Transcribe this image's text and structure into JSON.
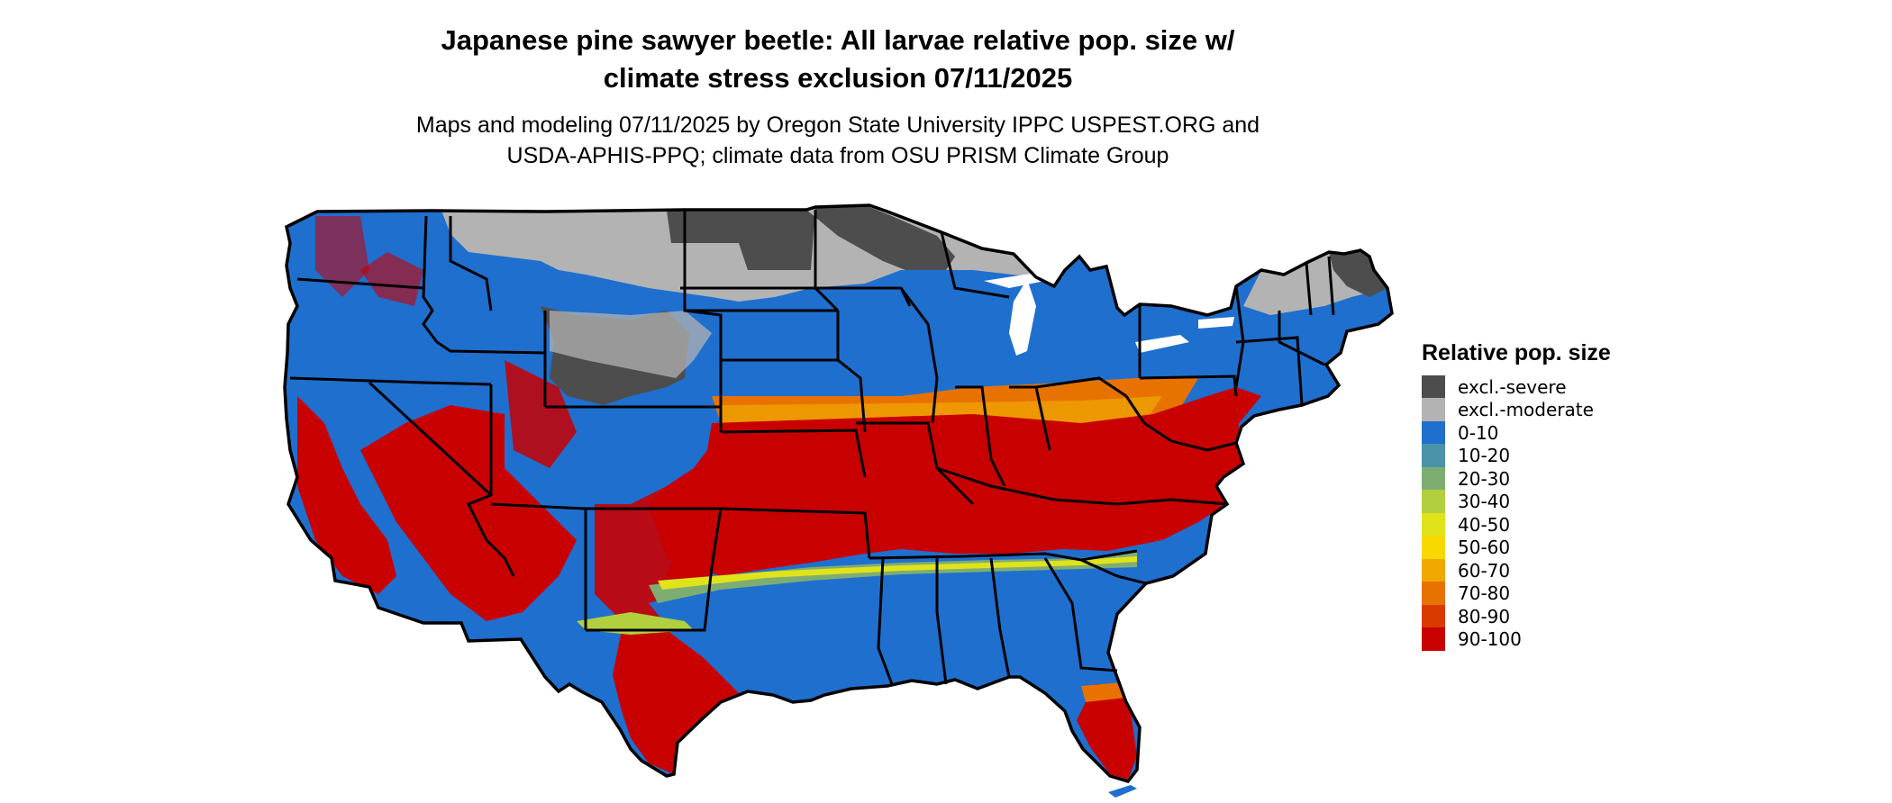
{
  "header": {
    "title_line1": "Japanese pine sawyer beetle: All larvae relative pop. size w/",
    "title_line2": "climate stress exclusion 07/11/2025",
    "subtitle_line1": "Maps and modeling 07/11/2025 by Oregon State University IPPC USPEST.ORG and",
    "subtitle_line2": "USDA-APHIS-PPQ; climate data from OSU PRISM Climate Group"
  },
  "legend": {
    "title": "Relative pop. size",
    "items": [
      {
        "label": "excl.-severe",
        "color": "#4d4d4d"
      },
      {
        "label": "excl.-moderate",
        "color": "#b3b3b3"
      },
      {
        "label": "0-10",
        "color": "#1f6fcf"
      },
      {
        "label": "10-20",
        "color": "#4a93a8"
      },
      {
        "label": "20-30",
        "color": "#7ead72"
      },
      {
        "label": "30-40",
        "color": "#b2cf3e"
      },
      {
        "label": "40-50",
        "color": "#e0e31a"
      },
      {
        "label": "50-60",
        "color": "#f7d900"
      },
      {
        "label": "60-70",
        "color": "#f0a800"
      },
      {
        "label": "70-80",
        "color": "#e87200"
      },
      {
        "label": "80-90",
        "color": "#d83a00"
      },
      {
        "label": "90-100",
        "color": "#c90000"
      }
    ]
  }
}
